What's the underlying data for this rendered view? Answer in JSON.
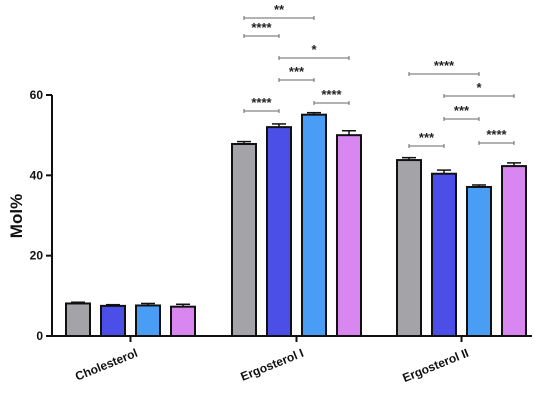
{
  "chart_data": {
    "type": "bar",
    "title": "",
    "xlabel": "",
    "ylabel": "Mol%",
    "ylim": [
      0,
      60
    ],
    "yticks": [
      0,
      20,
      40,
      60
    ],
    "categories": [
      "Cholesterol",
      "Ergosterol I",
      "Ergosterol II"
    ],
    "grid": false,
    "legend": "none",
    "series_colors": [
      "#a3a3a8",
      "#4b4fe8",
      "#4a9df5",
      "#d887f0"
    ],
    "series": [
      {
        "values": [
          8.1,
          47.8,
          43.8
        ],
        "errors": [
          0.3,
          0.6,
          0.6
        ]
      },
      {
        "values": [
          7.5,
          52.0,
          40.4
        ],
        "errors": [
          0.3,
          0.8,
          0.9
        ]
      },
      {
        "values": [
          7.6,
          55.1,
          37.1
        ],
        "errors": [
          0.5,
          0.5,
          0.5
        ]
      },
      {
        "values": [
          7.3,
          50.0,
          42.3
        ],
        "errors": [
          0.6,
          1.1,
          0.8
        ]
      }
    ],
    "significance": [
      {
        "category": 1,
        "from": 0,
        "to": 2,
        "label": "**"
      },
      {
        "category": 1,
        "from": 0,
        "to": 1,
        "label": "****"
      },
      {
        "category": 1,
        "from": 1,
        "to": 3,
        "label": "*"
      },
      {
        "category": 1,
        "from": 1,
        "to": 2,
        "label": "***"
      },
      {
        "category": 1,
        "from": 0,
        "to": 1,
        "label": "****"
      },
      {
        "category": 1,
        "from": 2,
        "to": 3,
        "label": "****"
      },
      {
        "category": 2,
        "from": 0,
        "to": 2,
        "label": "****"
      },
      {
        "category": 2,
        "from": 1,
        "to": 3,
        "label": "*"
      },
      {
        "category": 2,
        "from": 1,
        "to": 2,
        "label": "***"
      },
      {
        "category": 2,
        "from": 0,
        "to": 1,
        "label": "***"
      },
      {
        "category": 2,
        "from": 2,
        "to": 3,
        "label": "****"
      }
    ]
  }
}
